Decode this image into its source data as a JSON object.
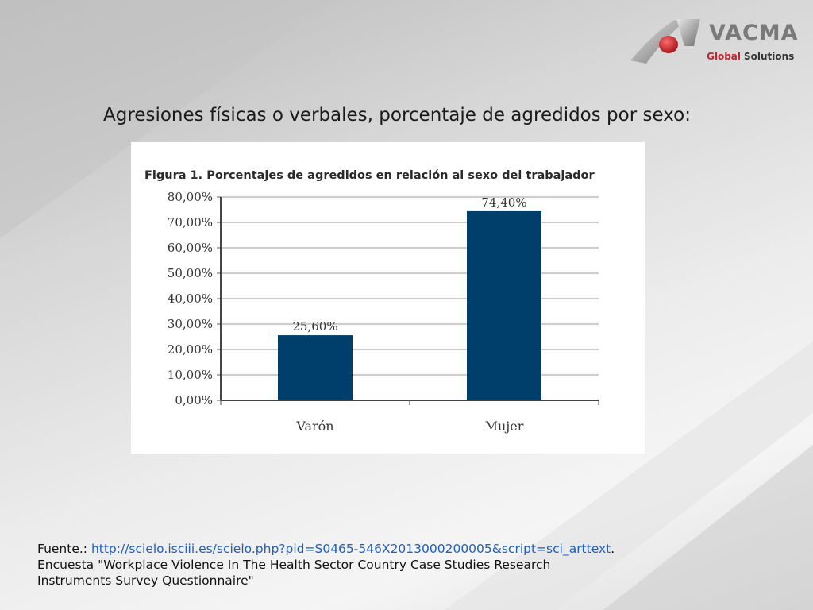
{
  "slide": {
    "title": "Agresiones físicas o verbales, porcentaje de agredidos por sexo:"
  },
  "logo": {
    "name": "VACMA",
    "tagline_1": "Global",
    "tagline_2": "Solutions",
    "colors": {
      "red": "#c0272d",
      "gray": "#7a7a7a"
    }
  },
  "footer": {
    "prefix": "Fuente.: ",
    "link": "http://scielo.isciii.es/scielo.php?pid=S0465-546X2013000200005&script=sci_arttext",
    "suffix": ".",
    "line2": "Encuesta \"Workplace Violence In The Health Sector Country Case Studies Research",
    "line3": "Instruments Survey Questionnaire\""
  },
  "chart_data": {
    "type": "bar",
    "title": "Figura 1. Porcentajes de agredidos en relación al sexo del trabajador",
    "categories": [
      "Varón",
      "Mujer"
    ],
    "values": [
      25.6,
      74.4
    ],
    "value_labels": [
      "25,60%",
      "74,40%"
    ],
    "ylim": [
      0,
      80
    ],
    "yticks": [
      0,
      10,
      20,
      30,
      40,
      50,
      60,
      70,
      80
    ],
    "ytick_labels": [
      "0,00%",
      "10,00%",
      "20,00%",
      "30,00%",
      "40,00%",
      "50,00%",
      "60,00%",
      "70,00%",
      "80,00%"
    ],
    "grid": true,
    "bar_color": "#003f6b",
    "xlabel": "",
    "ylabel": ""
  }
}
